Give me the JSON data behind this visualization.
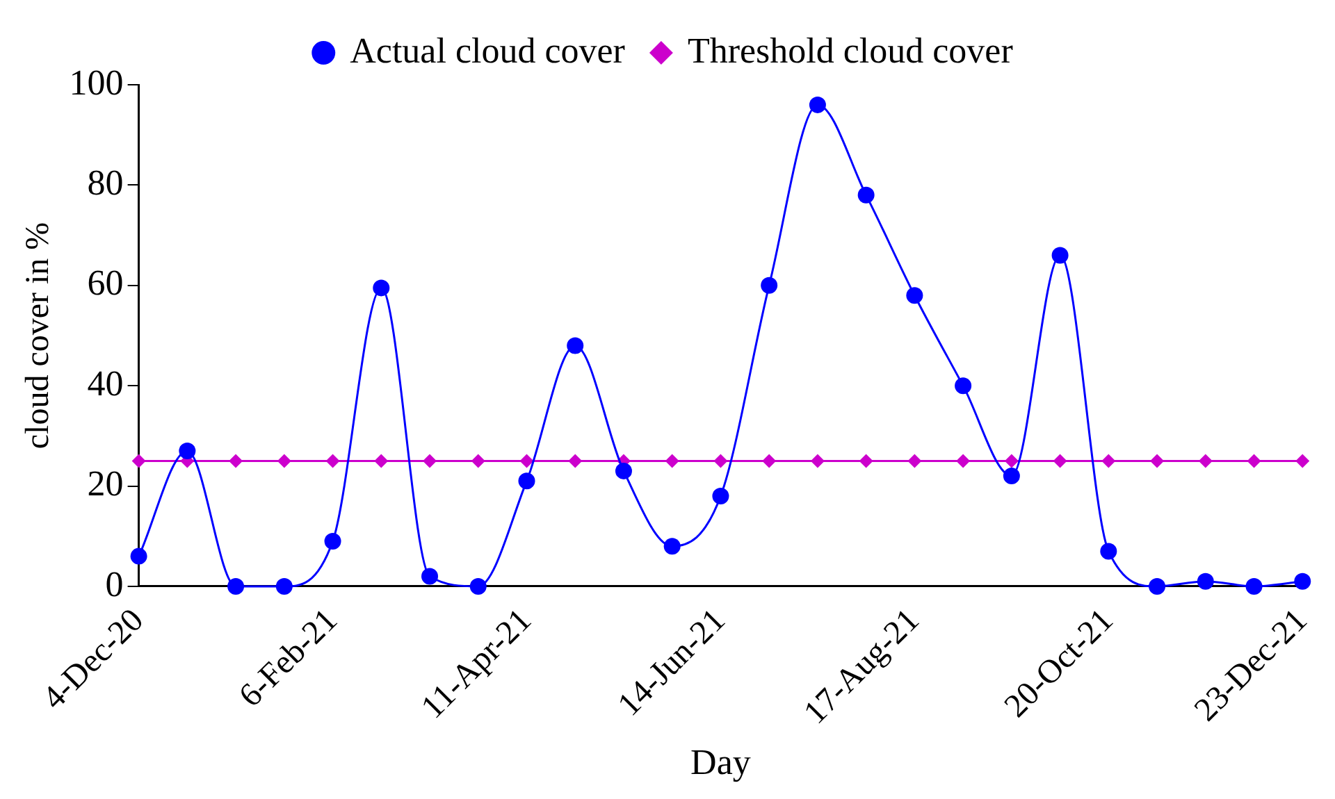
{
  "chart_data": {
    "type": "line",
    "xlabel": "Day",
    "ylabel": "cloud cover in %",
    "x": [
      "2020-12-04",
      "2020-12-20",
      "2021-01-05",
      "2021-01-21",
      "2021-02-06",
      "2021-02-22",
      "2021-03-10",
      "2021-03-26",
      "2021-04-11",
      "2021-04-27",
      "2021-05-13",
      "2021-05-29",
      "2021-06-14",
      "2021-06-30",
      "2021-07-16",
      "2021-08-01",
      "2021-08-17",
      "2021-09-02",
      "2021-09-18",
      "2021-10-04",
      "2021-10-20",
      "2021-11-05",
      "2021-11-21",
      "2021-12-07",
      "2021-12-23"
    ],
    "series": [
      {
        "name": "Actual cloud cover",
        "color": "#0000ff",
        "marker": "circle",
        "values": [
          6,
          27,
          0,
          0,
          9,
          59.5,
          2,
          0,
          21,
          48,
          23,
          8,
          18,
          60,
          96,
          78,
          58,
          40,
          22,
          66,
          7,
          0,
          1,
          0,
          1
        ]
      },
      {
        "name": "Threshold cloud cover",
        "color": "#cc00cc",
        "marker": "diamond",
        "values": [
          25,
          25,
          25,
          25,
          25,
          25,
          25,
          25,
          25,
          25,
          25,
          25,
          25,
          25,
          25,
          25,
          25,
          25,
          25,
          25,
          25,
          25,
          25,
          25,
          25
        ]
      }
    ],
    "xlim": [
      "2020-12-04",
      "2021-12-23"
    ],
    "xticks": [
      {
        "value": "2020-12-04",
        "label": "4-Dec-20"
      },
      {
        "value": "2021-02-06",
        "label": "6-Feb-21"
      },
      {
        "value": "2021-04-11",
        "label": "11-Apr-21"
      },
      {
        "value": "2021-06-14",
        "label": "14-Jun-21"
      },
      {
        "value": "2021-08-17",
        "label": "17-Aug-21"
      },
      {
        "value": "2021-10-20",
        "label": "20-Oct-21"
      },
      {
        "value": "2021-12-23",
        "label": "23-Dec-21"
      }
    ],
    "ylim": [
      0,
      100
    ],
    "yticks": [
      0,
      20,
      40,
      60,
      80,
      100
    ],
    "grid": false,
    "legend": "top",
    "line_style": "solid"
  }
}
